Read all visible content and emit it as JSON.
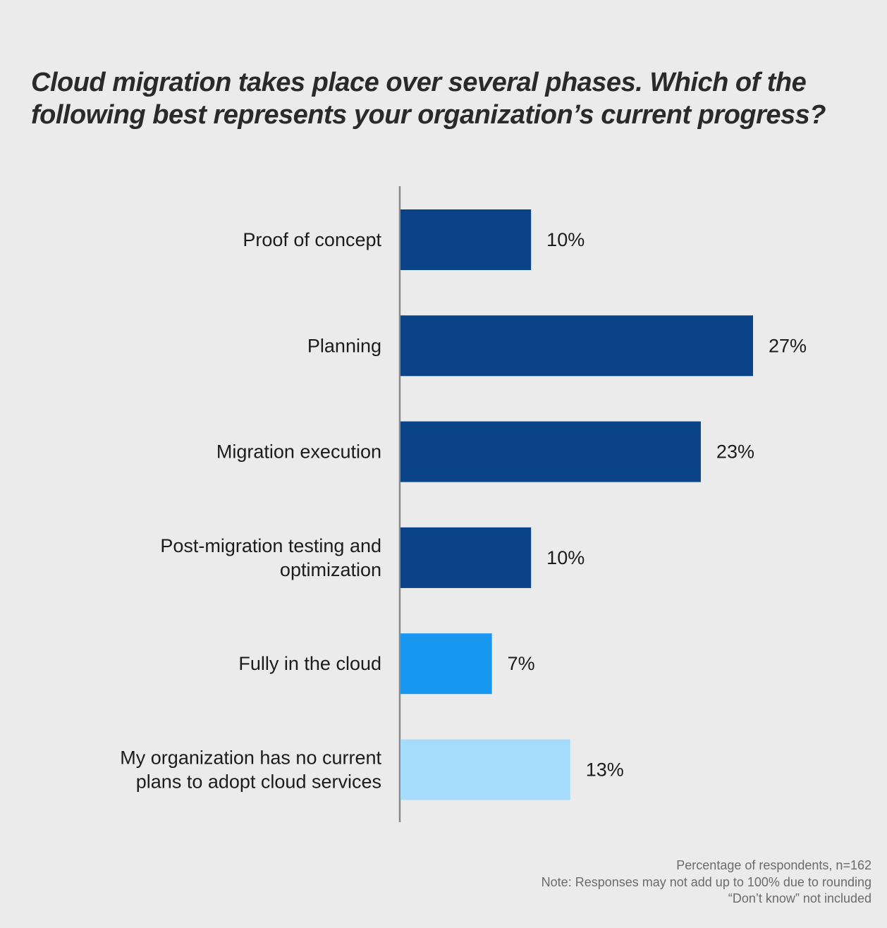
{
  "title": {
    "line1": "Cloud migration takes place over several phases. Which of the",
    "line2": "following best represents your organization’s current progress?"
  },
  "chart_data": {
    "type": "bar",
    "orientation": "horizontal",
    "title": "Cloud migration takes place over several phases. Which of the following best represents your organization’s current progress?",
    "xlabel": "Percentage of respondents",
    "ylabel": "",
    "xlim": [
      0,
      30
    ],
    "grid": false,
    "categories": [
      [
        "Proof of concept"
      ],
      [
        "Planning"
      ],
      [
        "Migration execution"
      ],
      [
        "Post-migration testing and",
        "optimization"
      ],
      [
        "Fully in the cloud"
      ],
      [
        "My organization has no current",
        "plans to adopt cloud services"
      ]
    ],
    "values": [
      10,
      27,
      23,
      10,
      7,
      13
    ],
    "value_labels": [
      "10%",
      "27%",
      "23%",
      "10%",
      "7%",
      "13%"
    ],
    "colors": [
      "#0a4388",
      "#0a4388",
      "#0a4388",
      "#0a4388",
      "#1897f0",
      "#a5dcfb"
    ],
    "axis_color": "#8a8a8a"
  },
  "footnotes": {
    "sample": "Percentage of respondents, n=162",
    "note": "Note: Responses may not add up to 100% due to rounding",
    "exclusion": "“Don’t know” not included"
  }
}
